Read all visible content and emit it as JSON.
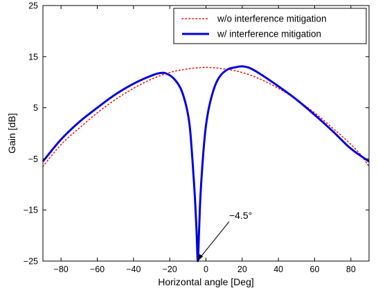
{
  "chart_data": {
    "type": "line",
    "title": "",
    "xlabel": "Horizontal angle [Deg]",
    "ylabel": "Gain [dB]",
    "xlim": [
      -90,
      90
    ],
    "ylim": [
      -25,
      25
    ],
    "xticks": [
      -80,
      -60,
      -40,
      -20,
      0,
      20,
      40,
      60,
      80
    ],
    "yticks": [
      -25,
      -15,
      -5,
      5,
      15,
      25
    ],
    "grid": false,
    "legend_position": "top-right",
    "series": [
      {
        "name": "w/o interference mitigation",
        "style": "dotted",
        "color": "#ff0000",
        "points": [
          [
            -90,
            -6.5
          ],
          [
            -80,
            -2.2
          ],
          [
            -70,
            1.0
          ],
          [
            -60,
            4.0
          ],
          [
            -50,
            6.6
          ],
          [
            -40,
            8.8
          ],
          [
            -30,
            10.6
          ],
          [
            -20,
            11.9
          ],
          [
            -10,
            12.6
          ],
          [
            0,
            12.9
          ],
          [
            10,
            12.6
          ],
          [
            20,
            11.9
          ],
          [
            30,
            10.6
          ],
          [
            40,
            8.8
          ],
          [
            50,
            6.6
          ],
          [
            60,
            4.0
          ],
          [
            70,
            1.0
          ],
          [
            78,
            -1.5
          ],
          [
            85,
            -4.0
          ],
          [
            90,
            -6.5
          ]
        ]
      },
      {
        "name": "w/ interference mitigation",
        "style": "solid",
        "color": "#0000dd",
        "points": [
          [
            -90,
            -5.5
          ],
          [
            -80,
            -1.2
          ],
          [
            -70,
            2.2
          ],
          [
            -60,
            5.0
          ],
          [
            -50,
            7.6
          ],
          [
            -40,
            9.7
          ],
          [
            -30,
            11.3
          ],
          [
            -25,
            11.8
          ],
          [
            -22,
            11.7
          ],
          [
            -18,
            10.8
          ],
          [
            -14,
            8.8
          ],
          [
            -11,
            5.5
          ],
          [
            -9,
            1.5
          ],
          [
            -7.5,
            -5
          ],
          [
            -6.2,
            -12
          ],
          [
            -5.2,
            -19
          ],
          [
            -4.5,
            -25
          ],
          [
            -3.8,
            -19
          ],
          [
            -3,
            -12
          ],
          [
            -1.5,
            -4
          ],
          [
            0,
            1.5
          ],
          [
            2,
            5.6
          ],
          [
            5,
            9.3
          ],
          [
            8,
            11.3
          ],
          [
            12,
            12.5
          ],
          [
            16,
            12.9
          ],
          [
            20,
            13.1
          ],
          [
            24,
            12.8
          ],
          [
            30,
            11.6
          ],
          [
            40,
            9.2
          ],
          [
            50,
            6.6
          ],
          [
            60,
            3.6
          ],
          [
            70,
            0.4
          ],
          [
            80,
            -3.0
          ],
          [
            90,
            -5.5
          ]
        ]
      }
    ],
    "annotations": [
      {
        "text": "−4.5°",
        "target": [
          -4.5,
          -25
        ]
      }
    ]
  }
}
